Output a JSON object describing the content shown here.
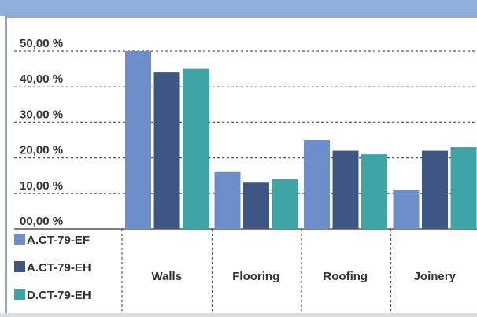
{
  "chart_data": {
    "type": "bar",
    "title": "",
    "xlabel": "",
    "ylabel": "",
    "categories": [
      "Walls",
      "Flooring",
      "Roofing",
      "Joinery"
    ],
    "y_ticks": [
      "00,00 %",
      "10,00 %",
      "20,00 %",
      "30,00 %",
      "40,00 %",
      "50,00 %"
    ],
    "ylim": [
      0,
      50
    ],
    "grid": true,
    "legend_position": "bottom-left table",
    "series": [
      {
        "name": "A.CT-79-EF",
        "color": "#6c8fcc",
        "values": [
          50,
          16,
          25,
          11
        ]
      },
      {
        "name": "A.CT-79-EH",
        "color": "#3e5684",
        "values": [
          44,
          13,
          22,
          22
        ]
      },
      {
        "name": "D.CT-79-EH",
        "color": "#3ea5a6",
        "values": [
          45,
          14,
          21,
          23
        ]
      }
    ]
  }
}
